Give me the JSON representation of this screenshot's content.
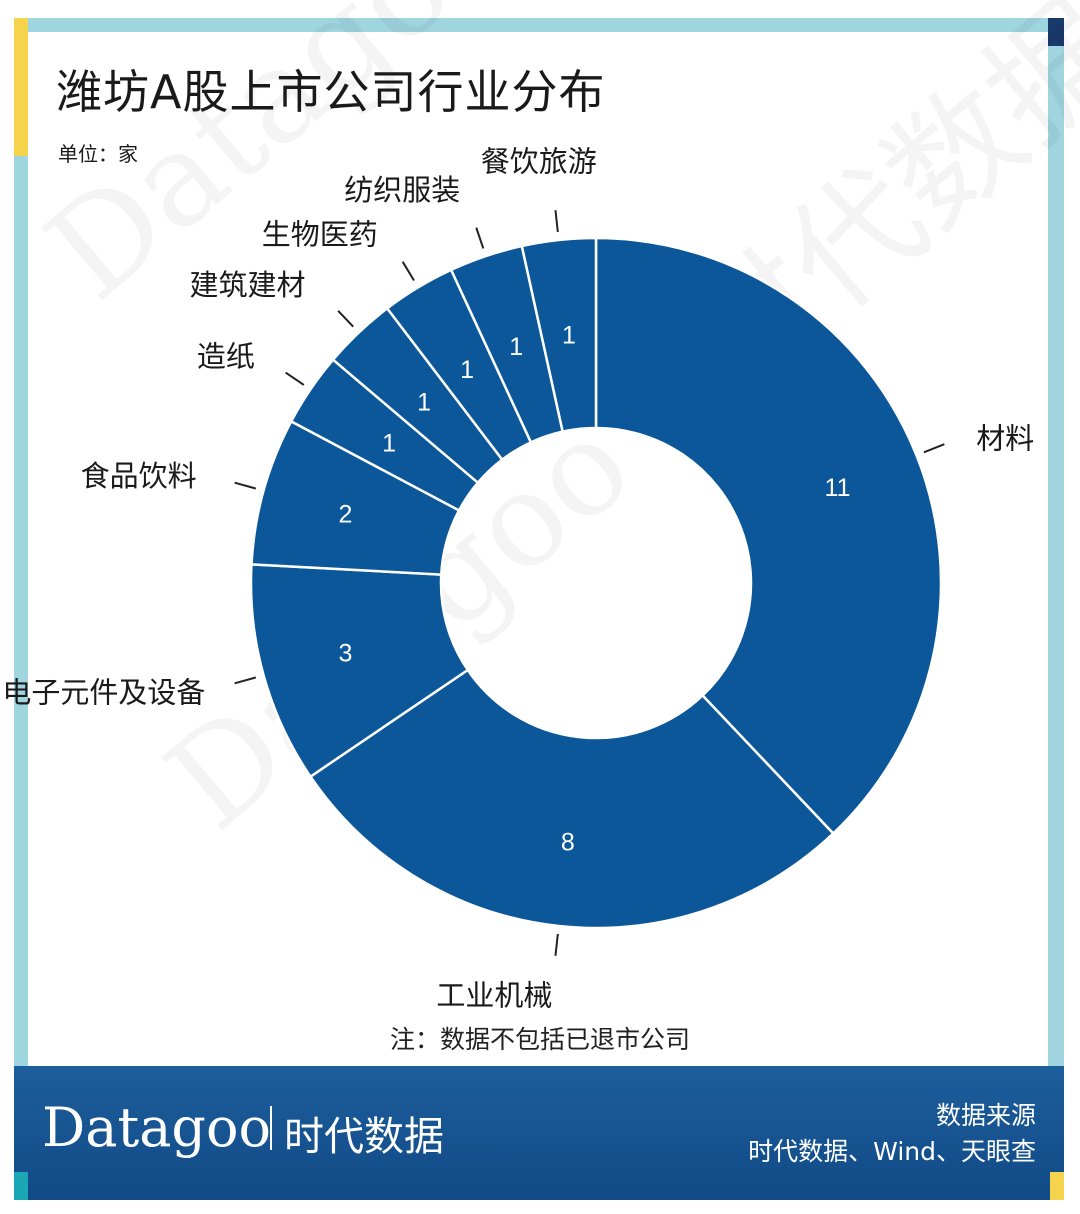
{
  "header": {
    "title": "潍坊A股上市公司行业分布",
    "unit": "单位：家"
  },
  "watermark": {
    "text": "Datagoo | 时代数据"
  },
  "note": "注：数据不包括已退市公司",
  "footer": {
    "brand": "Datagoo",
    "brand_cn": "时代数据",
    "source_heading": "数据来源",
    "source_value": "时代数据、Wind、天眼查"
  },
  "colors": {
    "slice": "#0b5799",
    "frame": "#9fd5df",
    "accent": "#f5d34a",
    "footer": "#1a5a98"
  },
  "chart_data": {
    "type": "pie",
    "donut": true,
    "categories": [
      "材料",
      "工业机械",
      "电子元件及设备",
      "食品饮料",
      "造纸",
      "建筑建材",
      "生物医药",
      "纺织服装",
      "餐饮旅游"
    ],
    "values": [
      11,
      8,
      3,
      2,
      1,
      1,
      1,
      1,
      1
    ],
    "title": "潍坊A股上市公司行业分布",
    "unit": "单位：家"
  }
}
